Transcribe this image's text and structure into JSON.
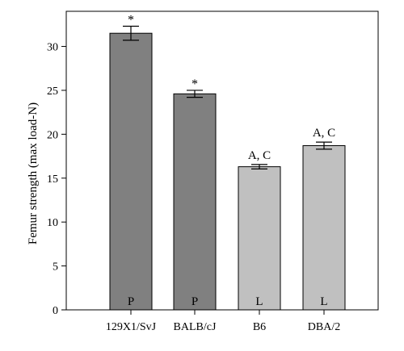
{
  "chart_data": {
    "type": "bar",
    "ylabel": "Femur strength (max load-N)",
    "xlabel": "",
    "ylim": [
      0,
      34
    ],
    "yticks": [
      0,
      5,
      10,
      15,
      20,
      25,
      30
    ],
    "grid": false,
    "categories": [
      "129X1/SvJ",
      "BALB/cJ",
      "B6",
      "DBA/2"
    ],
    "values": [
      31.5,
      24.6,
      16.3,
      18.7
    ],
    "errors": [
      0.8,
      0.4,
      0.25,
      0.4
    ],
    "annotations": [
      "*",
      "*",
      "A, C",
      "A, C"
    ],
    "inner_labels": [
      "P",
      "P",
      "L",
      "L"
    ],
    "colors": {
      "P": "#808080",
      "L": "#c0c0c0",
      "edge": "#000000"
    }
  }
}
